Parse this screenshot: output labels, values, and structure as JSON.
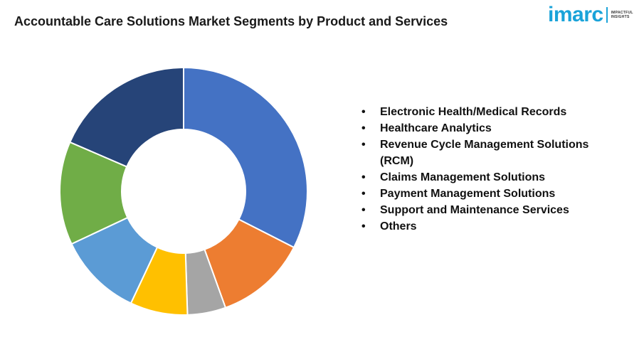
{
  "header": {
    "title": "Accountable Care Solutions Market Segments by Product and Services",
    "logo_text": "imarc",
    "logo_tagline_1": "IMPACTFUL",
    "logo_tagline_2": "INSIGHTS"
  },
  "chart_data": {
    "type": "pie",
    "donut": true,
    "title": "Accountable Care Solutions Market Segments by Product and Services",
    "legend_position": "right",
    "categories": [
      "Electronic Health/Medical Records",
      "Healthcare Analytics",
      "Revenue Cycle Management Solutions (RCM)",
      "Claims Management Solutions",
      "Payment Management Solutions",
      "Support and Maintenance Services",
      "Others"
    ],
    "values": [
      32.5,
      12,
      5,
      7.5,
      11,
      13.5,
      18.5
    ],
    "colors": [
      "#4472c4",
      "#ed7d31",
      "#a5a5a5",
      "#ffc000",
      "#5b9bd5",
      "#70ad47",
      "#264478"
    ]
  },
  "legend": {
    "items": [
      "Electronic Health/Medical Records",
      "Healthcare Analytics",
      "Revenue Cycle Management Solutions (RCM)",
      "Claims Management Solutions",
      "Payment Management Solutions",
      "Support and Maintenance Services",
      "Others"
    ]
  }
}
